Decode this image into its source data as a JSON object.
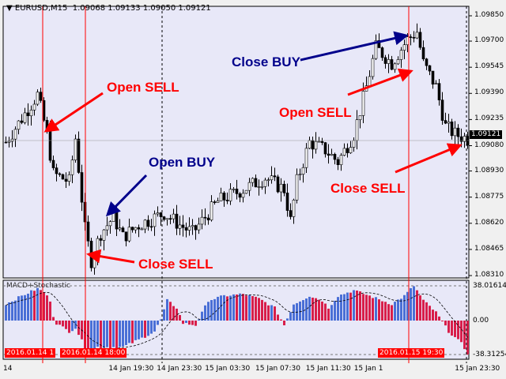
{
  "header": {
    "symbol": "EURUSD,M15",
    "open": "1.09068",
    "high": "1.09133",
    "low": "1.09050",
    "close": "1.09121"
  },
  "price_axis": [
    "1.09850",
    "1.09700",
    "1.09545",
    "1.09390",
    "1.09235",
    "1.09080",
    "1.08930",
    "1.08775",
    "1.08620",
    "1.08465",
    "1.08310"
  ],
  "current_price": "1.09121",
  "indicator": {
    "name": "MACD+Stochastic",
    "levels": [
      "38.01614",
      "0.00",
      "-38.31254"
    ]
  },
  "time_axis": [
    {
      "label": "14",
      "pos": 0
    },
    {
      "label": "14 Jan 19:30",
      "pos": 0.23
    },
    {
      "label": "14 Jan 23:30",
      "pos": 0.335
    },
    {
      "label": "15 Jan 03:30",
      "pos": 0.44
    },
    {
      "label": "15 Jan 07:30",
      "pos": 0.55
    },
    {
      "label": "15 Jan 11:30",
      "pos": 0.66
    },
    {
      "label": "15 Jan 1",
      "pos": 0.765
    },
    {
      "label": "15 Jan 23:30",
      "pos": 0.985
    }
  ],
  "time_tags": [
    "2016.01.14 1",
    "2016.01.14 18:00",
    "2016.01.15 19:30"
  ],
  "annotations": [
    {
      "text": "Open SELL",
      "color": "#ff0000"
    },
    {
      "text": "Close SELL",
      "color": "#ff0000"
    },
    {
      "text": "Open BUY",
      "color": "#00008b"
    },
    {
      "text": "Close BUY",
      "color": "#00008b"
    },
    {
      "text": "Open SELL",
      "color": "#ff0000"
    },
    {
      "text": "Close SELL",
      "color": "#ff0000"
    }
  ],
  "colors": {
    "background": "#e8e8f8",
    "up_hist": "#4a6fd6",
    "down_hist": "#d81e4a",
    "marker_line": "#ff0000",
    "buy_arrow": "#00008b",
    "sell_arrow": "#ff0000"
  },
  "price_path": [
    [
      0,
      1.09101
    ],
    [
      5,
      1.09241
    ],
    [
      10,
      1.09382
    ],
    [
      13,
      1.09148
    ],
    [
      15,
      1.08914
    ],
    [
      20,
      1.08867
    ],
    [
      22,
      1.09124
    ],
    [
      25,
      1.08586
    ],
    [
      27,
      1.08399
    ],
    [
      30,
      1.08563
    ],
    [
      34,
      1.08656
    ],
    [
      37,
      1.08539
    ],
    [
      42,
      1.0861
    ],
    [
      50,
      1.0868
    ],
    [
      55,
      1.0861
    ],
    [
      59,
      1.08563
    ],
    [
      62,
      1.08633
    ],
    [
      67,
      1.0875
    ],
    [
      75,
      1.0882
    ],
    [
      82,
      1.0889
    ],
    [
      88,
      1.0882
    ],
    [
      90,
      1.08633
    ],
    [
      92,
      1.08867
    ],
    [
      96,
      1.09101
    ],
    [
      101,
      1.09054
    ],
    [
      105,
      1.08984
    ],
    [
      110,
      1.09148
    ],
    [
      114,
      1.09429
    ],
    [
      117,
      1.09663
    ],
    [
      122,
      1.09569
    ],
    [
      127,
      1.0971
    ],
    [
      130,
      1.09756
    ],
    [
      132,
      1.09569
    ],
    [
      136,
      1.09429
    ],
    [
      139,
      1.09195
    ],
    [
      142,
      1.09148
    ],
    [
      146,
      1.09121
    ]
  ],
  "macd_path": [
    [
      0,
      18
    ],
    [
      5,
      27
    ],
    [
      10,
      35
    ],
    [
      12,
      31
    ],
    [
      14,
      22
    ],
    [
      15,
      5
    ],
    [
      16,
      -3
    ],
    [
      20,
      -12
    ],
    [
      22,
      -8
    ],
    [
      25,
      -29
    ],
    [
      26,
      -38
    ],
    [
      29,
      -29
    ],
    [
      32,
      -29
    ],
    [
      37,
      -29
    ],
    [
      42,
      -21
    ],
    [
      47,
      -12
    ],
    [
      49,
      1
    ],
    [
      51,
      22
    ],
    [
      54,
      14
    ],
    [
      56,
      -3
    ],
    [
      60,
      -5
    ],
    [
      64,
      22
    ],
    [
      69,
      27
    ],
    [
      75,
      29
    ],
    [
      80,
      24
    ],
    [
      85,
      14
    ],
    [
      88,
      -5
    ],
    [
      91,
      18
    ],
    [
      96,
      27
    ],
    [
      100,
      22
    ],
    [
      102,
      14
    ],
    [
      105,
      27
    ],
    [
      110,
      33
    ],
    [
      115,
      27
    ],
    [
      122,
      18
    ],
    [
      126,
      27
    ],
    [
      129,
      38
    ],
    [
      132,
      22
    ],
    [
      136,
      9
    ],
    [
      140,
      -12
    ],
    [
      144,
      -25
    ],
    [
      146,
      -36
    ]
  ]
}
